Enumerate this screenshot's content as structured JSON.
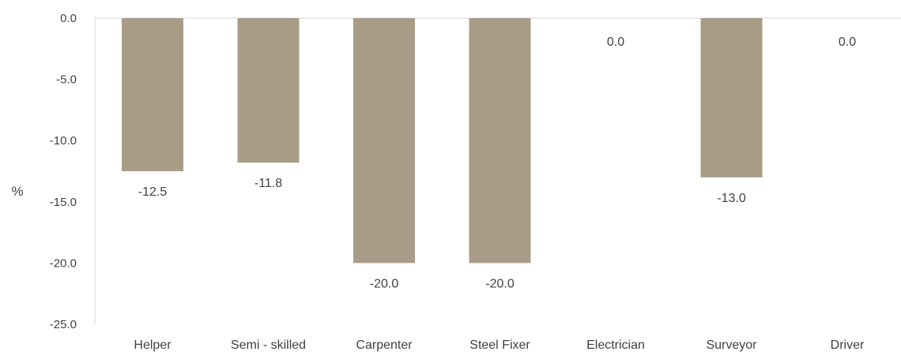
{
  "chart_data": {
    "type": "bar",
    "title": "",
    "xlabel": "",
    "ylabel": "%",
    "ylim": [
      -25,
      0
    ],
    "yticks": [
      0.0,
      -5.0,
      -10.0,
      -15.0,
      -20.0,
      -25.0
    ],
    "ytick_labels": [
      "0.0",
      "-5.0",
      "-10.0",
      "-15.0",
      "-20.0",
      "-25.0"
    ],
    "categories": [
      "Helper",
      "Semi - skilled",
      "Carpenter",
      "Steel Fixer",
      "Electrician",
      "Surveyor",
      "Driver"
    ],
    "values": [
      -12.5,
      -11.8,
      -20.0,
      -20.0,
      0.0,
      -13.0,
      0.0
    ],
    "data_labels": [
      "-12.5",
      "-11.8",
      "-20.0",
      "-20.0",
      "0.0",
      "-13.0",
      "0.0"
    ],
    "grid": false,
    "legend": "none",
    "bar_color": "#a89c87",
    "axis_color": "#d9d9d9",
    "text_color": "#404040"
  }
}
